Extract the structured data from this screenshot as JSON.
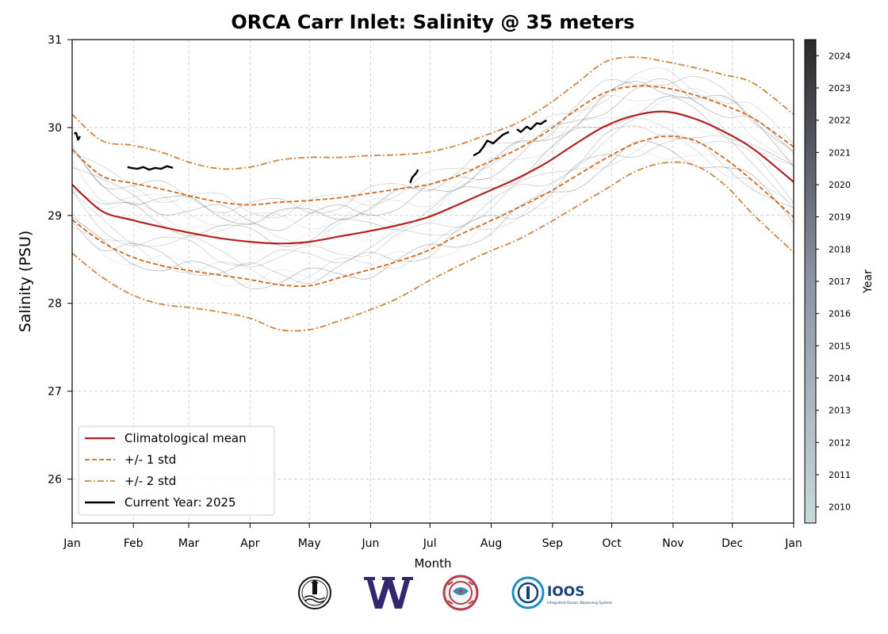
{
  "chart_data": {
    "type": "line",
    "title": "ORCA Carr Inlet: Salinity @ 35 meters",
    "xlabel": "Month",
    "ylabel": "Salinity (PSU)",
    "x_ticks": [
      "Jan",
      "Feb",
      "Mar",
      "Apr",
      "May",
      "Jun",
      "Jul",
      "Aug",
      "Sep",
      "Oct",
      "Nov",
      "Dec",
      "Jan"
    ],
    "x_tick_days": [
      0,
      31,
      59,
      90,
      120,
      151,
      181,
      212,
      243,
      273,
      304,
      334,
      365
    ],
    "xlim": [
      0,
      365
    ],
    "ylim": [
      25.5,
      31
    ],
    "y_ticks": [
      26,
      27,
      28,
      29,
      30,
      31
    ],
    "grid": true,
    "legend_position": "lower-left",
    "colors": {
      "mean": "#b22222",
      "std1": "#d2691e",
      "std2": "#cd853f",
      "current": "#000000",
      "grid": "#cccccc"
    },
    "legend": [
      {
        "label": "Climatological mean",
        "style": "solid",
        "color": "#b22222"
      },
      {
        "label": "+/- 1 std",
        "style": "dashed",
        "color": "#d2691e"
      },
      {
        "label": "+/- 2 std",
        "style": "dashdot",
        "color": "#cd853f"
      },
      {
        "label": "Current Year: 2025",
        "style": "solid",
        "color": "#000000"
      }
    ],
    "x": [
      0,
      15,
      30,
      45,
      60,
      75,
      90,
      105,
      120,
      135,
      150,
      165,
      180,
      195,
      210,
      225,
      240,
      255,
      270,
      285,
      300,
      315,
      330,
      345,
      365
    ],
    "series": [
      {
        "name": "Climatological mean",
        "role": "mean",
        "values": [
          29.35,
          29.05,
          28.95,
          28.87,
          28.8,
          28.74,
          28.7,
          28.68,
          28.7,
          28.76,
          28.82,
          28.89,
          28.98,
          29.12,
          29.27,
          29.42,
          29.6,
          29.82,
          30.02,
          30.14,
          30.18,
          30.1,
          29.95,
          29.75,
          29.38
        ]
      },
      {
        "name": "+/- 1 std",
        "role": "std1_upper",
        "values": [
          29.75,
          29.45,
          29.37,
          29.3,
          29.22,
          29.15,
          29.12,
          29.15,
          29.17,
          29.2,
          29.25,
          29.3,
          29.35,
          29.45,
          29.6,
          29.75,
          29.95,
          30.2,
          30.4,
          30.47,
          30.45,
          30.37,
          30.25,
          30.1,
          29.78
        ]
      },
      {
        "name": "+/- 1 std",
        "role": "std1_lower",
        "values": [
          28.95,
          28.7,
          28.53,
          28.43,
          28.37,
          28.32,
          28.27,
          28.21,
          28.2,
          28.29,
          28.38,
          28.48,
          28.6,
          28.77,
          28.92,
          29.08,
          29.25,
          29.45,
          29.65,
          29.82,
          29.9,
          29.85,
          29.65,
          29.38,
          28.98
        ]
      },
      {
        "name": "+/- 2 std",
        "role": "std2_upper",
        "values": [
          30.15,
          29.85,
          29.8,
          29.72,
          29.6,
          29.53,
          29.55,
          29.63,
          29.66,
          29.66,
          29.68,
          29.69,
          29.72,
          29.8,
          29.92,
          30.05,
          30.25,
          30.5,
          30.75,
          30.8,
          30.75,
          30.68,
          30.6,
          30.5,
          30.15
        ]
      },
      {
        "name": "+/- 2 std",
        "role": "std2_lower",
        "values": [
          28.57,
          28.3,
          28.1,
          27.99,
          27.95,
          27.9,
          27.83,
          27.7,
          27.7,
          27.8,
          27.92,
          28.06,
          28.25,
          28.42,
          28.58,
          28.72,
          28.9,
          29.1,
          29.3,
          29.5,
          29.6,
          29.57,
          29.35,
          29.0,
          28.58
        ]
      }
    ],
    "current_year_segments": [
      {
        "x": [
          1,
          2,
          3,
          4
        ],
        "y": [
          29.93,
          29.94,
          29.86,
          29.9
        ]
      },
      {
        "x": [
          28,
          30,
          33,
          36,
          39,
          42,
          45,
          48,
          51
        ],
        "y": [
          29.55,
          29.54,
          29.53,
          29.55,
          29.52,
          29.54,
          29.53,
          29.56,
          29.54
        ]
      },
      {
        "x": [
          171,
          172,
          174,
          175
        ],
        "y": [
          29.37,
          29.43,
          29.48,
          29.52
        ]
      },
      {
        "x": [
          203,
          206,
          208,
          210,
          213,
          216,
          218,
          221
        ],
        "y": [
          29.68,
          29.72,
          29.78,
          29.85,
          29.82,
          29.88,
          29.92,
          29.95
        ]
      },
      {
        "x": [
          225,
          227,
          230,
          232,
          235,
          237,
          239,
          240
        ],
        "y": [
          29.98,
          29.95,
          30.01,
          29.98,
          30.05,
          30.04,
          30.07,
          30.08
        ]
      }
    ],
    "historical_years": [
      2010,
      2011,
      2012,
      2013,
      2014,
      2015,
      2016,
      2017,
      2018,
      2019,
      2020,
      2021,
      2022,
      2023,
      2024
    ],
    "colorbar": {
      "label": "Year",
      "ticks": [
        "2010",
        "2011",
        "2012",
        "2013",
        "2014",
        "2015",
        "2016",
        "2017",
        "2018",
        "2019",
        "2020",
        "2021",
        "2022",
        "2023",
        "2024"
      ],
      "color_start": "#c8dad8",
      "color_end": "#2a2a2a"
    }
  },
  "logos": [
    {
      "icon": "lighthouse-seal-icon"
    },
    {
      "icon": "uw-w-logo-icon"
    },
    {
      "icon": "native-art-seal-icon"
    },
    {
      "icon": "ioos-logo-icon",
      "text": "IOOS",
      "subtext": "Integrated Ocean Observing System"
    }
  ]
}
